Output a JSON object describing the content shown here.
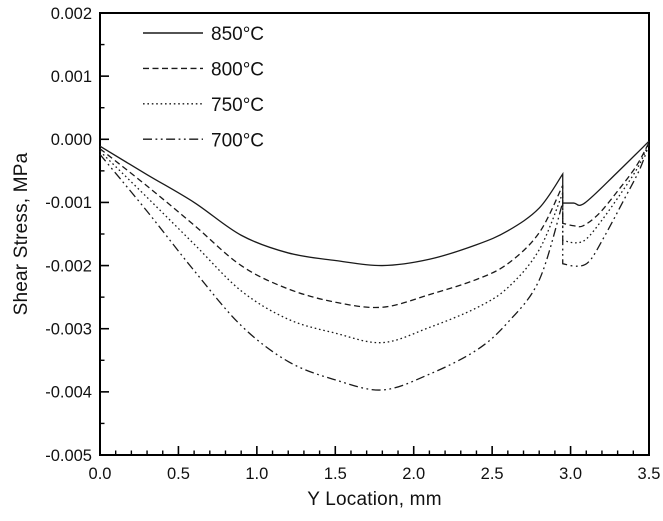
{
  "chart_data": {
    "type": "line",
    "title": "",
    "xlabel": "Y Location, mm",
    "ylabel": "Shear Stress, MPa",
    "xlim": [
      0,
      3.5
    ],
    "ylim": [
      -0.005,
      0.002
    ],
    "x_ticks": [
      "0.0",
      "0.5",
      "1.0",
      "1.5",
      "2.0",
      "2.5",
      "3.0",
      "3.5"
    ],
    "y_ticks": [
      "0.002",
      "0.001",
      "0.000",
      "-0.001",
      "-0.002",
      "-0.003",
      "-0.004",
      "-0.005"
    ],
    "x_minor_step": 0.1,
    "y_minor_step": 0.0005,
    "grid": false,
    "legend_position": "top-left-inside",
    "axis_color": "#000000",
    "line_color": "#1a1a1a",
    "series": [
      {
        "name": "850°C",
        "style": "solid",
        "dash": "none",
        "points_main": [
          [
            0,
            -0.00011
          ],
          [
            0.3,
            -0.00056
          ],
          [
            0.6,
            -0.001
          ],
          [
            0.9,
            -0.00152
          ],
          [
            1.2,
            -0.0018
          ],
          [
            1.5,
            -0.00192
          ],
          [
            1.8,
            -0.002
          ],
          [
            2.1,
            -0.0019
          ],
          [
            2.4,
            -0.00167
          ],
          [
            2.6,
            -0.00145
          ],
          [
            2.8,
            -0.00109
          ],
          [
            2.95,
            -0.00055
          ]
        ],
        "drop_x": 2.95,
        "drop_to": -0.00101,
        "points_tail": [
          [
            2.95,
            -0.00101
          ],
          [
            3.02,
            -0.00101
          ],
          [
            3.09,
            -0.00101
          ],
          [
            3.3,
            -0.00052
          ],
          [
            3.5,
            -3e-05
          ]
        ]
      },
      {
        "name": "800°C",
        "style": "dashed",
        "dash": "6 3.5",
        "points_main": [
          [
            0,
            -0.00015
          ],
          [
            0.3,
            -0.00074
          ],
          [
            0.6,
            -0.00136
          ],
          [
            0.9,
            -0.002
          ],
          [
            1.2,
            -0.00237
          ],
          [
            1.5,
            -0.00258
          ],
          [
            1.8,
            -0.00266
          ],
          [
            2.1,
            -0.00246
          ],
          [
            2.4,
            -0.00222
          ],
          [
            2.6,
            -0.00197
          ],
          [
            2.8,
            -0.00148
          ],
          [
            2.95,
            -0.00073
          ]
        ],
        "drop_x": 2.95,
        "drop_to": -0.00133,
        "points_tail": [
          [
            2.95,
            -0.00133
          ],
          [
            3.02,
            -0.00137
          ],
          [
            3.08,
            -0.00137
          ],
          [
            3.18,
            -0.00118
          ],
          [
            3.3,
            -0.00082
          ],
          [
            3.42,
            -0.00042
          ],
          [
            3.5,
            -5e-05
          ]
        ]
      },
      {
        "name": "750°C",
        "style": "dotted",
        "dash": "1.6 2.8",
        "points_main": [
          [
            0,
            -0.00019
          ],
          [
            0.3,
            -0.00092
          ],
          [
            0.6,
            -0.00166
          ],
          [
            0.9,
            -0.0024
          ],
          [
            1.2,
            -0.00285
          ],
          [
            1.5,
            -0.00307
          ],
          [
            1.8,
            -0.00322
          ],
          [
            2.1,
            -0.00298
          ],
          [
            2.4,
            -0.00267
          ],
          [
            2.6,
            -0.00235
          ],
          [
            2.8,
            -0.00175
          ],
          [
            2.95,
            -0.00085
          ]
        ],
        "drop_x": 2.95,
        "drop_to": -0.0016,
        "points_tail": [
          [
            2.95,
            -0.0016
          ],
          [
            3.03,
            -0.00164
          ],
          [
            3.1,
            -0.00158
          ],
          [
            3.2,
            -0.00128
          ],
          [
            3.32,
            -0.00086
          ],
          [
            3.43,
            -0.00044
          ],
          [
            3.5,
            -6e-05
          ]
        ]
      },
      {
        "name": "700°C",
        "style": "dash-dot-dot",
        "dash": "9 3.5 1.8 3.5 1.8 3.5",
        "points_main": [
          [
            0,
            -0.00024
          ],
          [
            0.3,
            -0.00114
          ],
          [
            0.6,
            -0.00208
          ],
          [
            0.9,
            -0.00295
          ],
          [
            1.2,
            -0.00352
          ],
          [
            1.5,
            -0.00381
          ],
          [
            1.8,
            -0.00397
          ],
          [
            2.1,
            -0.00372
          ],
          [
            2.4,
            -0.00334
          ],
          [
            2.6,
            -0.0029
          ],
          [
            2.8,
            -0.00223
          ],
          [
            2.95,
            -0.001
          ]
        ],
        "drop_x": 2.95,
        "drop_to": -0.00197,
        "points_tail": [
          [
            2.95,
            -0.00197
          ],
          [
            3.04,
            -0.00201
          ],
          [
            3.12,
            -0.00193
          ],
          [
            3.22,
            -0.00152
          ],
          [
            3.34,
            -0.00096
          ],
          [
            3.44,
            -0.00048
          ],
          [
            3.5,
            -8e-05
          ]
        ]
      }
    ]
  }
}
